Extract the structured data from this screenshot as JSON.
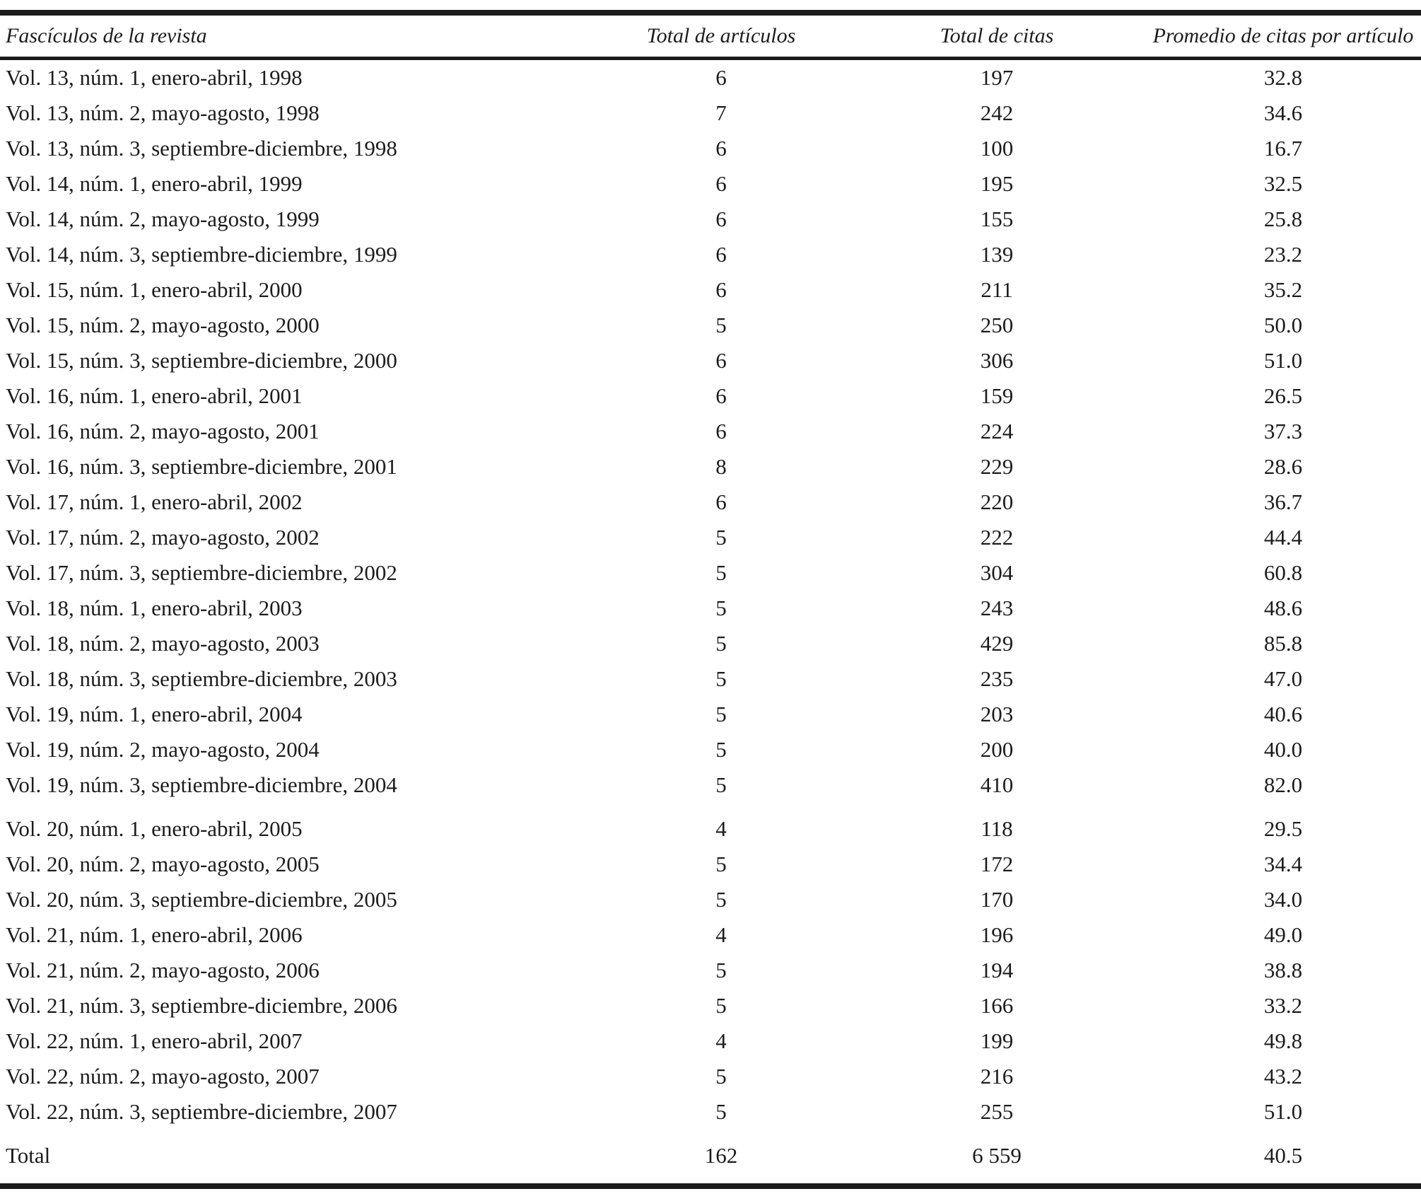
{
  "table": {
    "headers": [
      "Fascículos de la revista",
      "Total de artículos",
      "Total de citas",
      "Promedio de citas por artículo"
    ],
    "rows": [
      {
        "issue": "Vol. 13, núm. 1, enero-abril, 1998",
        "articles": "6",
        "citas": "197",
        "promedio": "32.8"
      },
      {
        "issue": "Vol. 13, núm. 2, mayo-agosto, 1998",
        "articles": "7",
        "citas": "242",
        "promedio": "34.6"
      },
      {
        "issue": "Vol. 13, núm. 3, septiembre-diciembre, 1998",
        "articles": "6",
        "citas": "100",
        "promedio": "16.7"
      },
      {
        "issue": "Vol. 14, núm. 1, enero-abril, 1999",
        "articles": "6",
        "citas": "195",
        "promedio": "32.5"
      },
      {
        "issue": "Vol. 14, núm. 2, mayo-agosto, 1999",
        "articles": "6",
        "citas": "155",
        "promedio": "25.8"
      },
      {
        "issue": "Vol. 14, núm. 3, septiembre-diciembre, 1999",
        "articles": "6",
        "citas": "139",
        "promedio": "23.2"
      },
      {
        "issue": "Vol. 15, núm. 1, enero-abril, 2000",
        "articles": "6",
        "citas": "211",
        "promedio": "35.2"
      },
      {
        "issue": "Vol. 15, núm. 2, mayo-agosto, 2000",
        "articles": "5",
        "citas": "250",
        "promedio": "50.0"
      },
      {
        "issue": "Vol. 15, núm. 3, septiembre-diciembre, 2000",
        "articles": "6",
        "citas": "306",
        "promedio": "51.0"
      },
      {
        "issue": "Vol. 16, núm. 1, enero-abril, 2001",
        "articles": "6",
        "citas": "159",
        "promedio": "26.5"
      },
      {
        "issue": "Vol. 16, núm. 2, mayo-agosto, 2001",
        "articles": "6",
        "citas": "224",
        "promedio": "37.3"
      },
      {
        "issue": "Vol. 16, núm. 3, septiembre-diciembre, 2001",
        "articles": "8",
        "citas": "229",
        "promedio": "28.6"
      },
      {
        "issue": "Vol. 17, núm. 1, enero-abril, 2002",
        "articles": "6",
        "citas": "220",
        "promedio": "36.7"
      },
      {
        "issue": "Vol. 17, núm. 2, mayo-agosto, 2002",
        "articles": "5",
        "citas": "222",
        "promedio": "44.4"
      },
      {
        "issue": "Vol. 17, núm. 3, septiembre-diciembre, 2002",
        "articles": "5",
        "citas": "304",
        "promedio": "60.8"
      },
      {
        "issue": "Vol. 18, núm. 1, enero-abril, 2003",
        "articles": "5",
        "citas": "243",
        "promedio": "48.6"
      },
      {
        "issue": "Vol. 18, núm. 2, mayo-agosto, 2003",
        "articles": "5",
        "citas": "429",
        "promedio": "85.8"
      },
      {
        "issue": "Vol. 18, núm. 3, septiembre-diciembre, 2003",
        "articles": "5",
        "citas": "235",
        "promedio": "47.0"
      },
      {
        "issue": "Vol. 19, núm. 1, enero-abril, 2004",
        "articles": "5",
        "citas": "203",
        "promedio": "40.6"
      },
      {
        "issue": "Vol. 19, núm. 2, mayo-agosto, 2004",
        "articles": "5",
        "citas": "200",
        "promedio": "40.0"
      },
      {
        "issue": "Vol. 19, núm. 3, septiembre-diciembre, 2004",
        "articles": "5",
        "citas": "410",
        "promedio": "82.0"
      },
      {
        "issue": "Vol. 20, núm. 1, enero-abril, 2005",
        "articles": "4",
        "citas": "118",
        "promedio": "29.5"
      },
      {
        "issue": "Vol. 20, núm. 2, mayo-agosto, 2005",
        "articles": "5",
        "citas": "172",
        "promedio": "34.4"
      },
      {
        "issue": "Vol. 20, núm. 3, septiembre-diciembre, 2005",
        "articles": "5",
        "citas": "170",
        "promedio": "34.0"
      },
      {
        "issue": "Vol. 21, núm. 1, enero-abril, 2006",
        "articles": "4",
        "citas": "196",
        "promedio": "49.0"
      },
      {
        "issue": "Vol. 21, núm. 2, mayo-agosto, 2006",
        "articles": "5",
        "citas": "194",
        "promedio": "38.8"
      },
      {
        "issue": "Vol. 21, núm. 3, septiembre-diciembre, 2006",
        "articles": "5",
        "citas": "166",
        "promedio": "33.2"
      },
      {
        "issue": "Vol. 22, núm. 1, enero-abril, 2007",
        "articles": "4",
        "citas": "199",
        "promedio": "49.8"
      },
      {
        "issue": "Vol. 22, núm. 2, mayo-agosto, 2007",
        "articles": "5",
        "citas": "216",
        "promedio": "43.2"
      },
      {
        "issue": "Vol. 22, núm. 3, septiembre-diciembre, 2007",
        "articles": "5",
        "citas": "255",
        "promedio": "51.0"
      }
    ],
    "total": {
      "label": "Total",
      "articles": "162",
      "citas": "6 559",
      "promedio": "40.5"
    }
  }
}
